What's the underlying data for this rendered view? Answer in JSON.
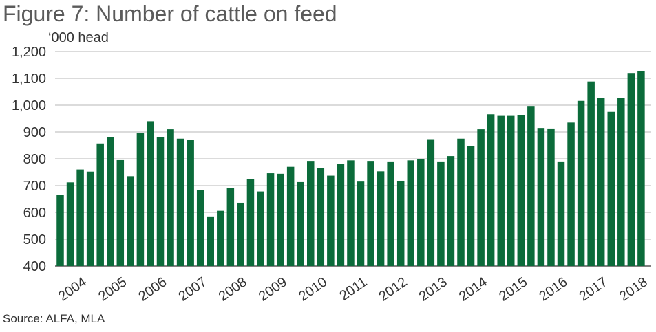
{
  "title": "Figure 7: Number of cattle on feed",
  "unit_label": "‘000 head",
  "source": "Source: ALFA, MLA",
  "colors": {
    "bar": "#0b6b3a",
    "grid": "#b7b7b7",
    "axis": "#333333"
  },
  "chart_data": {
    "type": "bar",
    "title": "Figure 7: Number of cattle on feed",
    "ylabel": "‘000 head",
    "xlabel": "",
    "ylim": [
      400,
      1200
    ],
    "yticks": [
      400,
      500,
      600,
      700,
      800,
      900,
      1000,
      1100,
      1200
    ],
    "ytick_labels": [
      "400",
      "500",
      "600",
      "700",
      "800",
      "900",
      "1,000",
      "1,100",
      "1,200"
    ],
    "grid": true,
    "frequency": "quarterly",
    "year_labels": [
      "2004",
      "2005",
      "2006",
      "2007",
      "2008",
      "2009",
      "2010",
      "2011",
      "2012",
      "2013",
      "2014",
      "2015",
      "2016",
      "2017",
      "2018"
    ],
    "categories": [
      "2004 Q1",
      "2004 Q2",
      "2004 Q3",
      "2004 Q4",
      "2005 Q1",
      "2005 Q2",
      "2005 Q3",
      "2005 Q4",
      "2006 Q1",
      "2006 Q2",
      "2006 Q3",
      "2006 Q4",
      "2007 Q1",
      "2007 Q2",
      "2007 Q3",
      "2007 Q4",
      "2008 Q1",
      "2008 Q2",
      "2008 Q3",
      "2008 Q4",
      "2009 Q1",
      "2009 Q2",
      "2009 Q3",
      "2009 Q4",
      "2010 Q1",
      "2010 Q2",
      "2010 Q3",
      "2010 Q4",
      "2011 Q1",
      "2011 Q2",
      "2011 Q3",
      "2011 Q4",
      "2012 Q1",
      "2012 Q2",
      "2012 Q3",
      "2012 Q4",
      "2013 Q1",
      "2013 Q2",
      "2013 Q3",
      "2013 Q4",
      "2014 Q1",
      "2014 Q2",
      "2014 Q3",
      "2014 Q4",
      "2015 Q1",
      "2015 Q2",
      "2015 Q3",
      "2015 Q4",
      "2016 Q1",
      "2016 Q2",
      "2016 Q3",
      "2016 Q4",
      "2017 Q1",
      "2017 Q2",
      "2017 Q3",
      "2017 Q4",
      "2018 Q1",
      "2018 Q2",
      "2018 Q3"
    ],
    "values": [
      666,
      712,
      760,
      752,
      857,
      880,
      795,
      735,
      896,
      940,
      882,
      910,
      875,
      870,
      683,
      585,
      606,
      690,
      636,
      725,
      678,
      746,
      744,
      770,
      713,
      792,
      766,
      737,
      780,
      794,
      715,
      792,
      753,
      790,
      718,
      794,
      800,
      873,
      790,
      810,
      875,
      848,
      910,
      966,
      960,
      960,
      962,
      997,
      915,
      913,
      790,
      935,
      1016,
      1088,
      1026,
      975,
      1026,
      1120,
      1128
    ]
  }
}
